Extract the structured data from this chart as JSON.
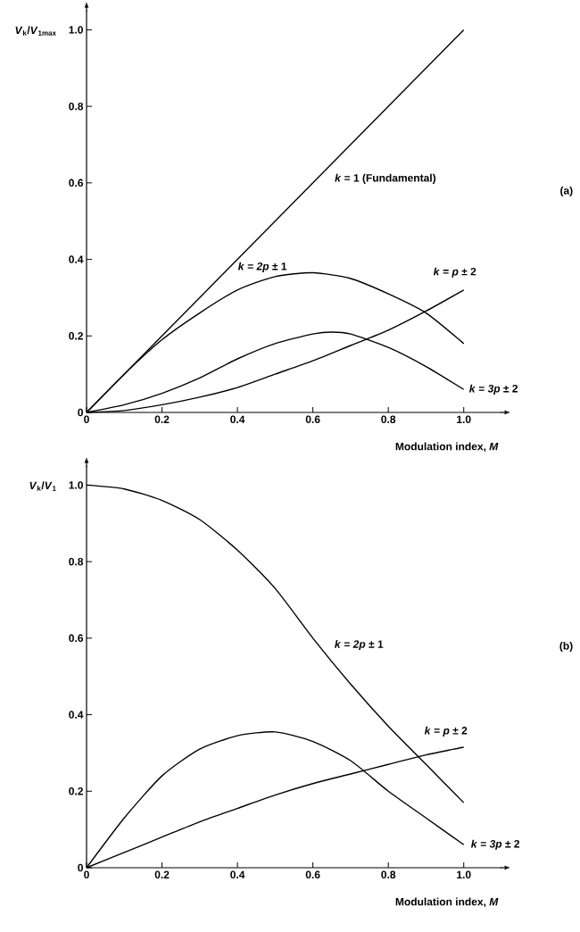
{
  "chart_data": [
    {
      "type": "line",
      "xlabel": "Modulation index, *M*",
      "ylabel": "*V*$_{k}$/*V*$_{1max}$",
      "annotations": [
        "(a)"
      ],
      "xlim": [
        0,
        1.1
      ],
      "ylim": [
        0,
        1.05
      ],
      "xticks": [
        0,
        0.2,
        0.4,
        0.6,
        0.8,
        {
          "value": 1,
          "label": "1.0"
        }
      ],
      "yticks": [
        0,
        0.2,
        0.4,
        0.6,
        0.8,
        {
          "value": 1,
          "label": "1.0"
        }
      ],
      "series": [
        {
          "name": "*k* = 1  (Fundamental)",
          "color": "#000000",
          "x": [
            0,
            1.0
          ],
          "values": [
            0,
            1.0
          ]
        },
        {
          "name": "*k* = *2p* ± 1",
          "color": "#000000",
          "x": [
            0,
            0.1,
            0.2,
            0.3,
            0.4,
            0.5,
            0.6,
            0.7,
            0.8,
            0.9,
            1.0
          ],
          "values": [
            0,
            0.1,
            0.19,
            0.26,
            0.32,
            0.355,
            0.365,
            0.35,
            0.31,
            0.26,
            0.18
          ]
        },
        {
          "name": "*k* = *p* ± 2",
          "color": "#000000",
          "x": [
            0,
            0.1,
            0.2,
            0.3,
            0.4,
            0.5,
            0.6,
            0.7,
            0.8,
            0.9,
            1.0
          ],
          "values": [
            0,
            0.005,
            0.02,
            0.04,
            0.065,
            0.1,
            0.135,
            0.175,
            0.215,
            0.265,
            0.32
          ]
        },
        {
          "name": "*k* = *3p* ± 2",
          "color": "#000000",
          "x": [
            0,
            0.1,
            0.2,
            0.3,
            0.4,
            0.5,
            0.6,
            0.65,
            0.7,
            0.8,
            0.9,
            1.0
          ],
          "values": [
            0,
            0.02,
            0.05,
            0.09,
            0.14,
            0.18,
            0.205,
            0.21,
            0.205,
            0.17,
            0.12,
            0.06
          ]
        }
      ]
    },
    {
      "type": "line",
      "xlabel": "Modulation index, *M*",
      "ylabel": "*V*$_{k}$/*V*$_{1}$",
      "annotations": [
        "(b)"
      ],
      "xlim": [
        0,
        1.1
      ],
      "ylim": [
        0,
        1.05
      ],
      "xticks": [
        0,
        0.2,
        0.4,
        0.6,
        0.8,
        {
          "value": 1,
          "label": "1.0"
        }
      ],
      "yticks": [
        0,
        0.2,
        0.4,
        0.6,
        0.8,
        {
          "value": 1,
          "label": "1.0"
        }
      ],
      "series": [
        {
          "name": "*k* = *2p* ± 1",
          "color": "#000000",
          "x": [
            0,
            0.1,
            0.2,
            0.3,
            0.4,
            0.5,
            0.6,
            0.7,
            0.8,
            0.9,
            1.0
          ],
          "values": [
            1.0,
            0.99,
            0.96,
            0.91,
            0.83,
            0.73,
            0.6,
            0.48,
            0.37,
            0.27,
            0.17
          ]
        },
        {
          "name": "*k* = *p* ± 2",
          "color": "#000000",
          "x": [
            0,
            0.1,
            0.2,
            0.3,
            0.4,
            0.5,
            0.6,
            0.7,
            0.8,
            0.9,
            1.0
          ],
          "values": [
            0,
            0.04,
            0.08,
            0.12,
            0.155,
            0.19,
            0.22,
            0.245,
            0.27,
            0.295,
            0.315
          ]
        },
        {
          "name": "*k* = *3p* ± 2",
          "color": "#000000",
          "x": [
            0,
            0.1,
            0.2,
            0.3,
            0.4,
            0.5,
            0.6,
            0.7,
            0.8,
            0.9,
            1.0
          ],
          "values": [
            0,
            0.13,
            0.24,
            0.31,
            0.345,
            0.355,
            0.33,
            0.28,
            0.2,
            0.13,
            0.06
          ]
        }
      ]
    }
  ]
}
